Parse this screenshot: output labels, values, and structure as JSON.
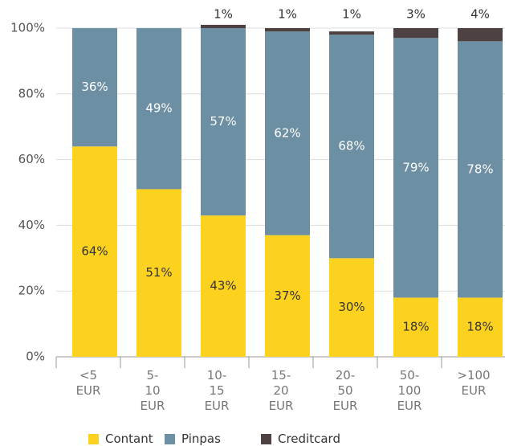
{
  "chart_data": {
    "type": "bar",
    "stacked": true,
    "categories": [
      "<5 EUR",
      "5-10 EUR",
      "10-15 EUR",
      "15-20 EUR",
      "20-50 EUR",
      "50-100 EUR",
      ">100 EUR"
    ],
    "series": [
      {
        "name": "Contant",
        "color": "#fdd21f",
        "values": [
          64,
          51,
          43,
          37,
          30,
          18,
          18
        ],
        "value_labels": [
          "64%",
          "51%",
          "43%",
          "37%",
          "30%",
          "18%",
          "18%"
        ]
      },
      {
        "name": "Pinpas",
        "color": "#6d8fa3",
        "values": [
          36,
          49,
          57,
          62,
          68,
          79,
          78
        ],
        "value_labels": [
          "36%",
          "49%",
          "57%",
          "62%",
          "68%",
          "79%",
          "78%"
        ]
      },
      {
        "name": "Creditcard",
        "color": "#4d4141",
        "values": [
          0,
          0,
          1,
          1,
          1,
          3,
          4
        ],
        "value_labels": [
          null,
          null,
          "1%",
          "1%",
          "1%",
          "3%",
          "4%"
        ]
      }
    ],
    "ylim": [
      0,
      100
    ],
    "yticks": [
      {
        "value": 0,
        "label": "0%"
      },
      {
        "value": 20,
        "label": "20%"
      },
      {
        "value": 40,
        "label": "40%"
      },
      {
        "value": 60,
        "label": "60%"
      },
      {
        "value": 80,
        "label": "80%"
      },
      {
        "value": 100,
        "label": "100%"
      }
    ],
    "grid": true,
    "legend": "bottom"
  }
}
